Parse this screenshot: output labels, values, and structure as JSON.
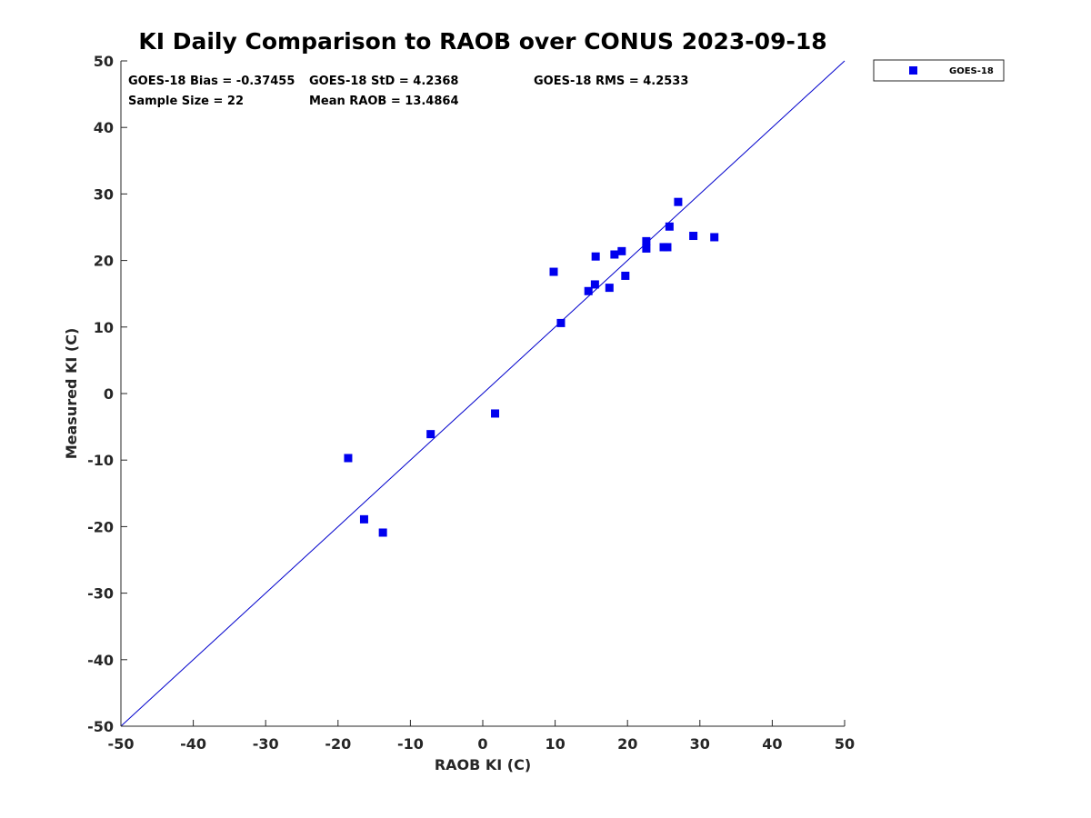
{
  "chart_data": {
    "type": "scatter",
    "title": "KI Daily Comparison to RAOB over CONUS 2023-09-18",
    "xlabel": "RAOB KI (C)",
    "ylabel": "Measured KI (C)",
    "xlim": [
      -50,
      50
    ],
    "ylim": [
      -50,
      50
    ],
    "xticks": [
      -50,
      -40,
      -30,
      -20,
      -10,
      0,
      10,
      20,
      30,
      40,
      50
    ],
    "yticks": [
      -50,
      -40,
      -30,
      -20,
      -10,
      0,
      10,
      20,
      30,
      40,
      50
    ],
    "grid": false,
    "legend_position": "outside-top-right",
    "reference_line": {
      "name": "1:1 line",
      "from": [
        -50,
        -50
      ],
      "to": [
        50,
        50
      ],
      "color": "#0000cc"
    },
    "series": [
      {
        "name": "GOES-18",
        "marker": "square",
        "color": "#0000ee",
        "points": [
          [
            -18.6,
            -9.7
          ],
          [
            -16.4,
            -18.9
          ],
          [
            -13.8,
            -20.9
          ],
          [
            -7.2,
            -6.1
          ],
          [
            1.7,
            -3.0
          ],
          [
            9.8,
            18.3
          ],
          [
            10.8,
            10.6
          ],
          [
            14.6,
            15.4
          ],
          [
            15.5,
            16.4
          ],
          [
            15.6,
            20.6
          ],
          [
            17.5,
            15.9
          ],
          [
            18.2,
            20.9
          ],
          [
            19.2,
            21.4
          ],
          [
            19.7,
            17.7
          ],
          [
            22.6,
            21.8
          ],
          [
            22.6,
            22.9
          ],
          [
            25.0,
            22.0
          ],
          [
            25.5,
            22.0
          ],
          [
            25.8,
            25.1
          ],
          [
            27.0,
            28.8
          ],
          [
            29.1,
            23.7
          ],
          [
            32.0,
            23.5
          ]
        ]
      }
    ],
    "annotations": {
      "bias": "GOES-18 Bias = -0.37455",
      "std": "GOES-18 StD = 4.2368",
      "rms": "GOES-18 RMS = 4.2533",
      "sample_size": "Sample Size = 22",
      "mean_raob": "Mean RAOB = 13.4864"
    },
    "legend_label": "GOES-18"
  }
}
